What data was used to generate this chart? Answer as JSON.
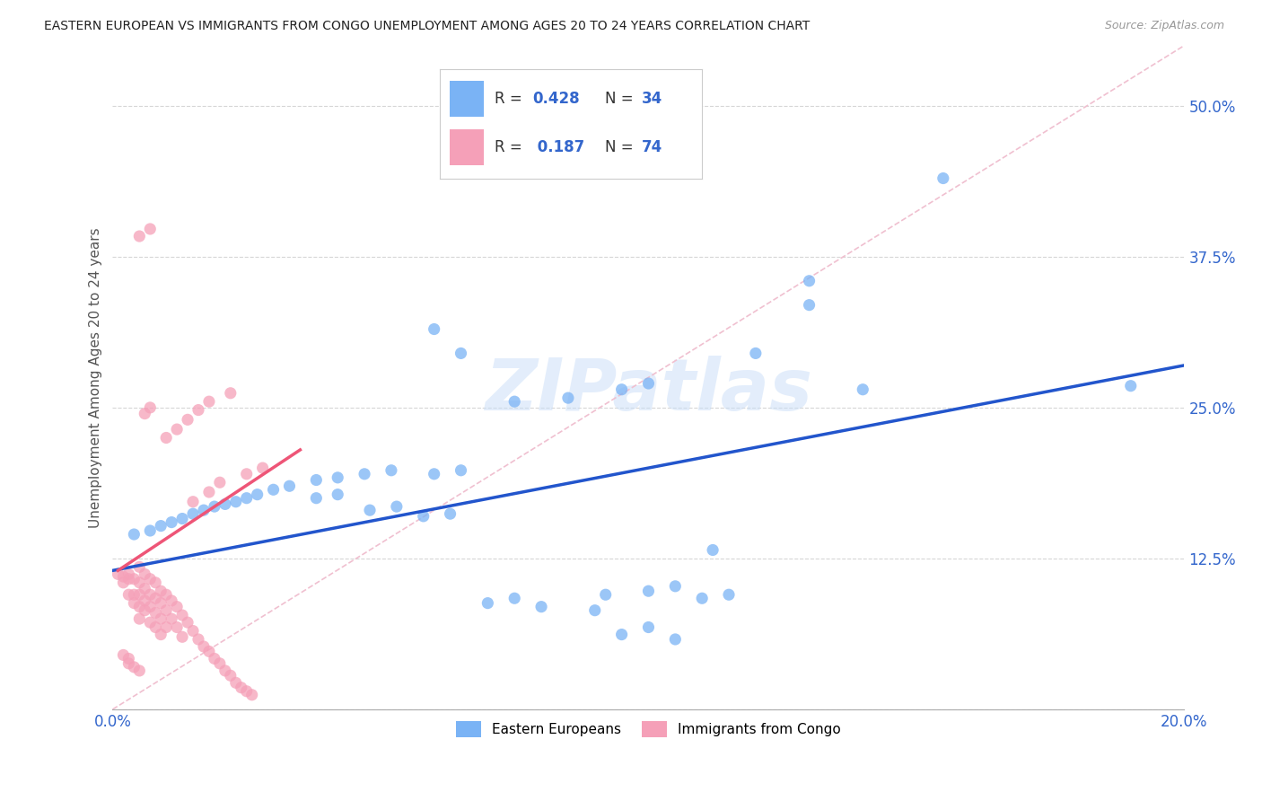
{
  "title": "EASTERN EUROPEAN VS IMMIGRANTS FROM CONGO UNEMPLOYMENT AMONG AGES 20 TO 24 YEARS CORRELATION CHART",
  "source": "Source: ZipAtlas.com",
  "ylabel": "Unemployment Among Ages 20 to 24 years",
  "xlim": [
    0.0,
    0.2
  ],
  "ylim": [
    0.0,
    0.55
  ],
  "xticks": [
    0.0,
    0.05,
    0.1,
    0.15,
    0.2
  ],
  "xticklabels": [
    "0.0%",
    "",
    "",
    "",
    "20.0%"
  ],
  "yticks": [
    0.0,
    0.125,
    0.25,
    0.375,
    0.5
  ],
  "yticklabels": [
    "",
    "12.5%",
    "25.0%",
    "37.5%",
    "50.0%"
  ],
  "grid_color": "#cccccc",
  "background_color": "#ffffff",
  "watermark": "ZIPatlas",
  "blue_color": "#7ab3f5",
  "pink_color": "#f5a0b8",
  "blue_line_color": "#2255cc",
  "pink_line_color": "#ee5577",
  "dashed_color": "#f0c0d0",
  "blue_line_x": [
    0.0,
    0.2
  ],
  "blue_line_y": [
    0.115,
    0.285
  ],
  "pink_line_x": [
    0.001,
    0.035
  ],
  "pink_line_y": [
    0.115,
    0.215
  ],
  "dash_line_x": [
    0.0,
    0.2
  ],
  "dash_line_y": [
    0.0,
    0.55
  ],
  "blue_scatter": [
    [
      0.004,
      0.145
    ],
    [
      0.007,
      0.148
    ],
    [
      0.009,
      0.152
    ],
    [
      0.011,
      0.155
    ],
    [
      0.013,
      0.158
    ],
    [
      0.015,
      0.162
    ],
    [
      0.017,
      0.165
    ],
    [
      0.019,
      0.168
    ],
    [
      0.021,
      0.17
    ],
    [
      0.023,
      0.172
    ],
    [
      0.025,
      0.175
    ],
    [
      0.027,
      0.178
    ],
    [
      0.03,
      0.182
    ],
    [
      0.033,
      0.185
    ],
    [
      0.038,
      0.19
    ],
    [
      0.042,
      0.192
    ],
    [
      0.047,
      0.195
    ],
    [
      0.052,
      0.198
    ],
    [
      0.038,
      0.175
    ],
    [
      0.042,
      0.178
    ],
    [
      0.048,
      0.165
    ],
    [
      0.053,
      0.168
    ],
    [
      0.058,
      0.16
    ],
    [
      0.063,
      0.162
    ],
    [
      0.06,
      0.195
    ],
    [
      0.065,
      0.198
    ],
    [
      0.07,
      0.088
    ],
    [
      0.075,
      0.092
    ],
    [
      0.08,
      0.085
    ],
    [
      0.09,
      0.082
    ],
    [
      0.095,
      0.062
    ],
    [
      0.1,
      0.068
    ],
    [
      0.105,
      0.058
    ],
    [
      0.11,
      0.092
    ],
    [
      0.1,
      0.098
    ],
    [
      0.105,
      0.102
    ],
    [
      0.092,
      0.095
    ],
    [
      0.065,
      0.295
    ],
    [
      0.06,
      0.315
    ],
    [
      0.075,
      0.255
    ],
    [
      0.085,
      0.258
    ],
    [
      0.095,
      0.265
    ],
    [
      0.1,
      0.27
    ],
    [
      0.112,
      0.132
    ],
    [
      0.12,
      0.295
    ],
    [
      0.13,
      0.355
    ],
    [
      0.14,
      0.265
    ],
    [
      0.155,
      0.44
    ],
    [
      0.13,
      0.335
    ],
    [
      0.115,
      0.095
    ],
    [
      0.19,
      0.268
    ]
  ],
  "pink_scatter": [
    [
      0.001,
      0.112
    ],
    [
      0.002,
      0.11
    ],
    [
      0.002,
      0.105
    ],
    [
      0.003,
      0.112
    ],
    [
      0.003,
      0.108
    ],
    [
      0.003,
      0.095
    ],
    [
      0.004,
      0.108
    ],
    [
      0.004,
      0.095
    ],
    [
      0.004,
      0.088
    ],
    [
      0.005,
      0.118
    ],
    [
      0.005,
      0.105
    ],
    [
      0.005,
      0.095
    ],
    [
      0.005,
      0.085
    ],
    [
      0.005,
      0.075
    ],
    [
      0.006,
      0.112
    ],
    [
      0.006,
      0.1
    ],
    [
      0.006,
      0.09
    ],
    [
      0.006,
      0.082
    ],
    [
      0.007,
      0.108
    ],
    [
      0.007,
      0.095
    ],
    [
      0.007,
      0.085
    ],
    [
      0.007,
      0.072
    ],
    [
      0.008,
      0.105
    ],
    [
      0.008,
      0.092
    ],
    [
      0.008,
      0.08
    ],
    [
      0.008,
      0.068
    ],
    [
      0.009,
      0.098
    ],
    [
      0.009,
      0.088
    ],
    [
      0.009,
      0.075
    ],
    [
      0.009,
      0.062
    ],
    [
      0.01,
      0.095
    ],
    [
      0.01,
      0.082
    ],
    [
      0.01,
      0.068
    ],
    [
      0.011,
      0.09
    ],
    [
      0.011,
      0.075
    ],
    [
      0.012,
      0.085
    ],
    [
      0.012,
      0.068
    ],
    [
      0.013,
      0.078
    ],
    [
      0.013,
      0.06
    ],
    [
      0.014,
      0.072
    ],
    [
      0.015,
      0.065
    ],
    [
      0.016,
      0.058
    ],
    [
      0.017,
      0.052
    ],
    [
      0.018,
      0.048
    ],
    [
      0.019,
      0.042
    ],
    [
      0.02,
      0.038
    ],
    [
      0.021,
      0.032
    ],
    [
      0.022,
      0.028
    ],
    [
      0.023,
      0.022
    ],
    [
      0.024,
      0.018
    ],
    [
      0.025,
      0.015
    ],
    [
      0.026,
      0.012
    ],
    [
      0.003,
      0.038
    ],
    [
      0.004,
      0.035
    ],
    [
      0.005,
      0.032
    ],
    [
      0.002,
      0.045
    ],
    [
      0.003,
      0.042
    ],
    [
      0.006,
      0.245
    ],
    [
      0.007,
      0.25
    ],
    [
      0.01,
      0.225
    ],
    [
      0.012,
      0.232
    ],
    [
      0.014,
      0.24
    ],
    [
      0.016,
      0.248
    ],
    [
      0.018,
      0.255
    ],
    [
      0.022,
      0.262
    ],
    [
      0.005,
      0.392
    ],
    [
      0.007,
      0.398
    ],
    [
      0.015,
      0.172
    ],
    [
      0.018,
      0.18
    ],
    [
      0.02,
      0.188
    ],
    [
      0.025,
      0.195
    ],
    [
      0.028,
      0.2
    ]
  ]
}
